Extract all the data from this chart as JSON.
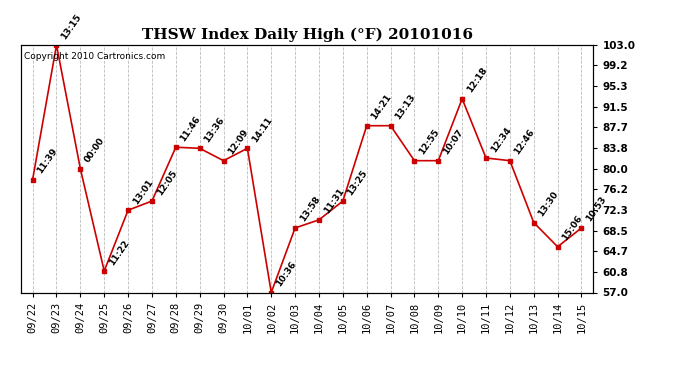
{
  "title": "THSW Index Daily High (°F) 20101016",
  "copyright": "Copyright 2010 Cartronics.com",
  "dates": [
    "09/22",
    "09/23",
    "09/24",
    "09/25",
    "09/26",
    "09/27",
    "09/28",
    "09/29",
    "09/30",
    "10/01",
    "10/02",
    "10/03",
    "10/04",
    "10/05",
    "10/06",
    "10/07",
    "10/08",
    "10/09",
    "10/10",
    "10/11",
    "10/12",
    "10/13",
    "10/14",
    "10/15"
  ],
  "values": [
    78.0,
    103.0,
    80.0,
    61.0,
    72.3,
    74.0,
    84.0,
    83.8,
    81.5,
    83.8,
    57.0,
    69.0,
    70.5,
    74.0,
    88.0,
    88.0,
    81.5,
    81.5,
    93.0,
    82.0,
    81.5,
    70.0,
    65.5,
    69.0
  ],
  "time_labels": [
    "11:39",
    "13:15",
    "00:00",
    "11:22",
    "13:01",
    "12:05",
    "11:46",
    "13:36",
    "12:09",
    "14:11",
    "10:36",
    "13:58",
    "11:31",
    "13:25",
    "14:21",
    "13:13",
    "12:55",
    "10:07",
    "12:18",
    "12:34",
    "12:46",
    "13:30",
    "15:06",
    "10:53"
  ],
  "yticks": [
    57.0,
    60.8,
    64.7,
    68.5,
    72.3,
    76.2,
    80.0,
    83.8,
    87.7,
    91.5,
    95.3,
    99.2,
    103.0
  ],
  "ymin": 57.0,
  "ymax": 103.0,
  "line_color": "#cc0000",
  "marker_color": "#cc0000",
  "bg_color": "#ffffff",
  "grid_color": "#bbbbbb",
  "title_fontsize": 11,
  "label_fontsize": 6.5,
  "tick_fontsize": 7.5,
  "copyright_fontsize": 6.5
}
